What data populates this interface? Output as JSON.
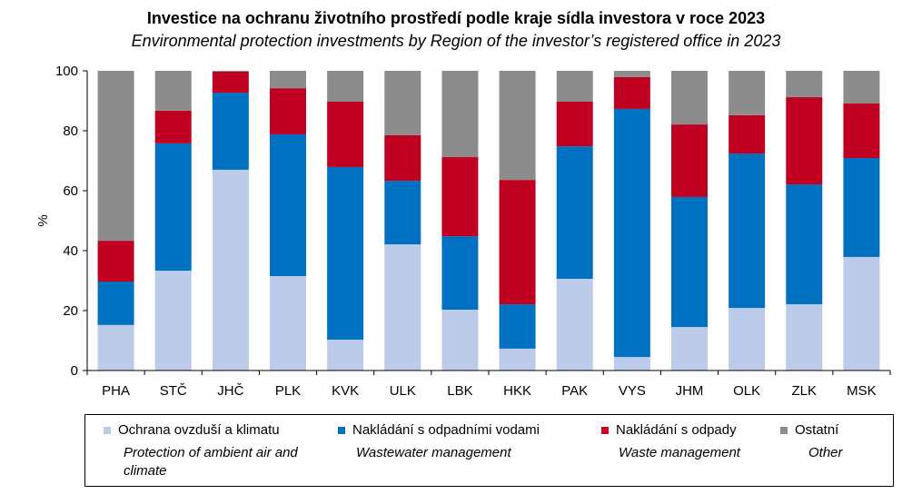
{
  "chart_data": {
    "type": "bar",
    "stacked": true,
    "title": "Investice na ochranu životního prostředí podle kraje sídla investora v roce 2023",
    "subtitle": "Environmental protection investments by Region of the investor’s registered office in 2023",
    "ylabel": "%",
    "ylim": [
      0,
      100
    ],
    "yticks": [
      "0",
      "20",
      "40",
      "60",
      "80",
      "100"
    ],
    "categories": [
      "PHA",
      "STČ",
      "JHČ",
      "PLK",
      "KVK",
      "ULK",
      "LBK",
      "HKK",
      "PAK",
      "VYS",
      "JHM",
      "OLK",
      "ZLK",
      "MSK"
    ],
    "series": [
      {
        "name": "Ochrana ovzduší a klimatu",
        "name_en": "Protection of ambient air and climate",
        "color": "#bccbe9",
        "values": [
          15.2,
          33.3,
          67.0,
          31.5,
          10.3,
          42.1,
          20.3,
          7.3,
          30.6,
          4.5,
          14.5,
          20.9,
          22.1,
          37.9
        ]
      },
      {
        "name": "Nakládání s odpadními vodami",
        "name_en": "Wastewater management",
        "color": "#0070c0",
        "values": [
          14.5,
          42.5,
          25.7,
          47.3,
          57.6,
          21.2,
          24.5,
          14.8,
          44.2,
          82.8,
          43.4,
          51.5,
          40.0,
          33.0
        ]
      },
      {
        "name": "Nakládání s odpady",
        "name_en": "Waste management",
        "color": "#c00020",
        "values": [
          13.6,
          10.9,
          7.0,
          15.4,
          21.8,
          15.2,
          26.4,
          41.5,
          14.9,
          10.6,
          24.2,
          12.8,
          29.1,
          18.2
        ]
      },
      {
        "name": "Ostatní",
        "name_en": "Other",
        "color": "#8c8c8c",
        "values": [
          56.7,
          13.3,
          0.3,
          5.8,
          10.3,
          21.5,
          28.8,
          36.4,
          10.3,
          2.1,
          17.9,
          14.8,
          8.8,
          10.9
        ]
      }
    ],
    "legend_position": "bottom",
    "grid": false
  }
}
